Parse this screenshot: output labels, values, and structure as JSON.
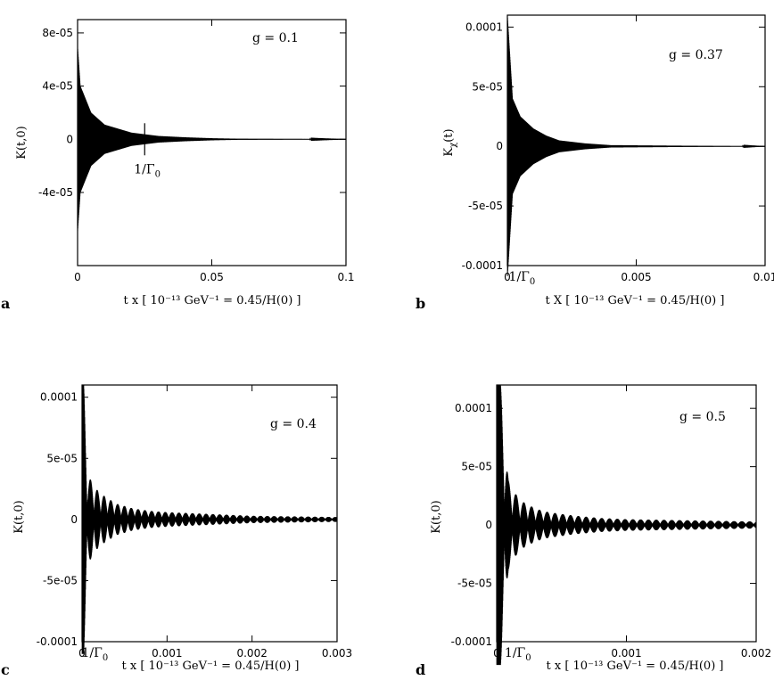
{
  "chart_data": [
    {
      "panel": "a",
      "type": "line",
      "xlabel": "t x [ 10⁻¹³ GeV⁻¹ = 0.45/H(0) ]",
      "ylabel": "K(t,0)",
      "xlim": [
        0,
        0.1
      ],
      "ylim": [
        -9.5e-05,
        9e-05
      ],
      "x_ticks": [
        0,
        0.05,
        0.1
      ],
      "x_tick_labels": [
        "0",
        "0.05",
        "0.1"
      ],
      "y_ticks": [
        -4e-05,
        0,
        4e-05,
        8e-05
      ],
      "y_tick_labels": [
        "-4e-05",
        "0",
        "4e-05",
        "8e-05"
      ],
      "annotation": "g = 0.1",
      "marker": {
        "x": 0.025,
        "label": "1/Γ₀"
      },
      "series": [
        {
          "x": [
            0,
            0.001,
            0.005,
            0.01,
            0.02,
            0.03,
            0.04,
            0.05,
            0.06,
            0.1
          ],
          "envelope": [
            7e-05,
            4e-05,
            2e-05,
            1.1e-05,
            5e-06,
            2.5e-06,
            1.5e-06,
            8e-07,
            4e-07,
            0
          ]
        }
      ]
    },
    {
      "panel": "b",
      "type": "line",
      "xlabel": "t X [ 10⁻¹³ GeV⁻¹ = 0.45/H(0) ]",
      "ylabel": "Kχ(t)",
      "xlim": [
        0,
        0.01
      ],
      "ylim": [
        -0.0001,
        0.00011
      ],
      "x_ticks": [
        0,
        0.005,
        0.01
      ],
      "x_tick_labels": [
        "0",
        "0.005",
        "0.01"
      ],
      "y_ticks": [
        -0.0001,
        -5e-05,
        0,
        5e-05,
        0.0001
      ],
      "y_tick_labels": [
        "-0.0001",
        "-5e-05",
        "0",
        "5e-05",
        "0.0001"
      ],
      "annotation": "g = 0.37",
      "marker": {
        "x": 0.0004,
        "label": "1/Γ₀"
      },
      "series": [
        {
          "x": [
            0,
            0.0002,
            0.0005,
            0.001,
            0.0015,
            0.002,
            0.003,
            0.004,
            0.01
          ],
          "envelope": [
            0.00011,
            4e-05,
            2.5e-05,
            1.5e-05,
            9e-06,
            5e-06,
            2.5e-06,
            1e-06,
            0
          ]
        }
      ]
    },
    {
      "panel": "c",
      "type": "line",
      "xlabel": "t x [ 10⁻¹³ GeV⁻¹ = 0.45/H(0) ]",
      "ylabel": "K(t,0)",
      "xlim": [
        0,
        0.003
      ],
      "ylim": [
        -0.0001,
        0.00011
      ],
      "x_ticks": [
        0,
        0.001,
        0.002,
        0.003
      ],
      "x_tick_labels": [
        "0",
        "0.001",
        "0.002",
        "0.003"
      ],
      "y_ticks": [
        -0.0001,
        -5e-05,
        0,
        5e-05,
        0.0001
      ],
      "y_tick_labels": [
        "-0.0001",
        "-5e-05",
        "0",
        "5e-05",
        "0.0001"
      ],
      "annotation": "g = 0.4",
      "marker": {
        "x": 0.0001,
        "label": "1/Γ₀"
      },
      "series": [
        {
          "x": [
            0,
            2e-05,
            7e-05,
            0.00014,
            0.0002,
            0.0004,
            0.0006,
            0.0008,
            0.001,
            0.0015,
            0.002,
            0.003
          ],
          "envelope": [
            0.00011,
            0.00011,
            3.6e-05,
            2.8e-05,
            2.2e-05,
            1.3e-05,
            9e-06,
            7e-06,
            6e-06,
            4.5e-06,
            3e-06,
            2e-06
          ],
          "beat_period": 8e-05
        }
      ]
    },
    {
      "panel": "d",
      "type": "line",
      "xlabel": "t x [ 10⁻¹³ GeV⁻¹ = 0.45/H(0) ]",
      "ylabel": "K(t,0)",
      "xlim": [
        0,
        0.002
      ],
      "ylim": [
        -0.0001,
        0.00012
      ],
      "x_ticks": [
        0,
        0.001,
        0.002
      ],
      "x_tick_labels": [
        "0",
        "0.001",
        "0.002"
      ],
      "y_ticks": [
        -0.0001,
        -5e-05,
        0,
        5e-05,
        0.0001
      ],
      "y_tick_labels": [
        "-0.0001",
        "-5e-05",
        "0",
        "5e-05",
        "0.0001"
      ],
      "annotation": "g = 0.5",
      "marker": {
        "x": 0.00013,
        "label": "1/Γ₀"
      },
      "series": [
        {
          "x": [
            0,
            3e-05,
            9e-05,
            0.00015,
            0.0002,
            0.0003,
            0.0004,
            0.0006,
            0.0008,
            0.001,
            0.0015,
            0.002
          ],
          "envelope": [
            0.00012,
            0.00012,
            3.8e-05,
            2.6e-05,
            2e-05,
            1.4e-05,
            1.1e-05,
            8e-06,
            6e-06,
            5e-06,
            4e-06,
            3e-06
          ],
          "beat_period": 6e-05
        }
      ]
    }
  ]
}
